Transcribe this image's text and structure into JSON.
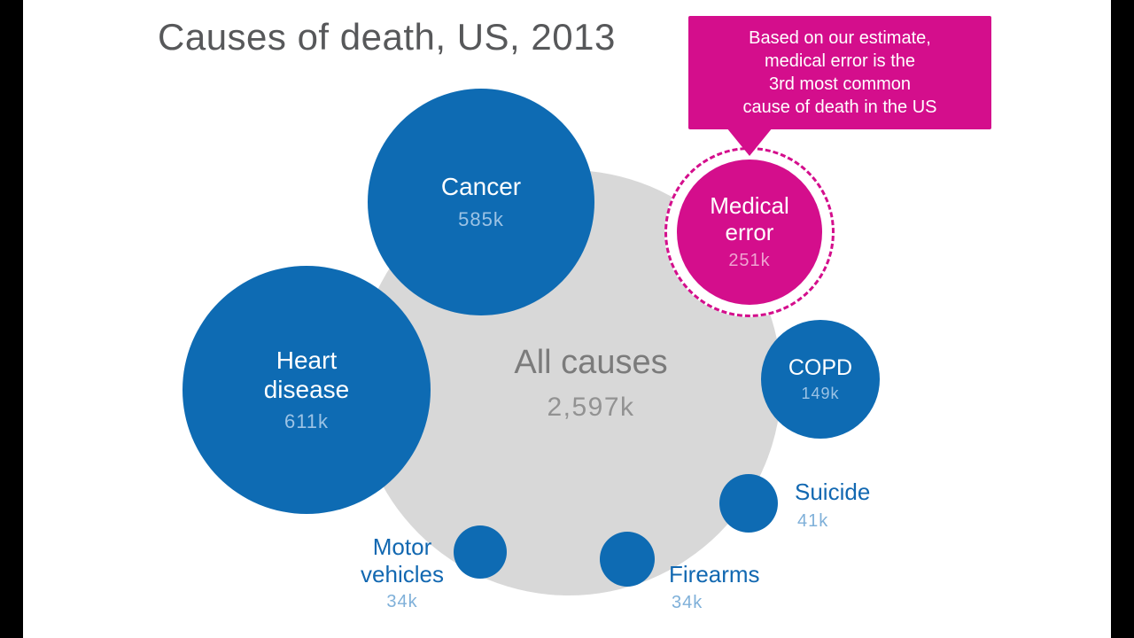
{
  "title": "Causes of death, US, 2013",
  "callout": {
    "line1": "Based on our estimate,",
    "line2": "medical error is the",
    "line3": "3rd most common",
    "line4": "cause of death in the US"
  },
  "colors": {
    "blue": "#0e6bb3",
    "pink": "#d40e8c",
    "gray": "#d8d8d8",
    "title_gray": "#57585a",
    "value_light_blue": "#9cc3e5",
    "value_light_pink": "#efa3d1",
    "outside_label_blue": "#1268b1"
  },
  "chart_data": {
    "type": "bubble",
    "title": "Causes of death, US, 2013",
    "unit_suffix": "k",
    "series": [
      {
        "label": "All causes",
        "value": 2597,
        "display": "2,597k",
        "color": "#d8d8d8",
        "role": "total"
      },
      {
        "label": "Heart disease",
        "value": 611,
        "display": "611k",
        "color": "#0e6bb3"
      },
      {
        "label": "Cancer",
        "value": 585,
        "display": "585k",
        "color": "#0e6bb3"
      },
      {
        "label": "Medical error",
        "value": 251,
        "display": "251k",
        "color": "#d40e8c",
        "outline": "dashed"
      },
      {
        "label": "COPD",
        "value": 149,
        "display": "149k",
        "color": "#0e6bb3"
      },
      {
        "label": "Suicide",
        "value": 41,
        "display": "41k",
        "color": "#0e6bb3"
      },
      {
        "label": "Motor vehicles",
        "value": 34,
        "display": "34k",
        "color": "#0e6bb3"
      },
      {
        "label": "Firearms",
        "value": 34,
        "display": "34k",
        "color": "#0e6bb3"
      }
    ],
    "annotation": "Based on our estimate, medical error is the 3rd most common cause of death in the US",
    "legend": "none",
    "grid": false
  }
}
